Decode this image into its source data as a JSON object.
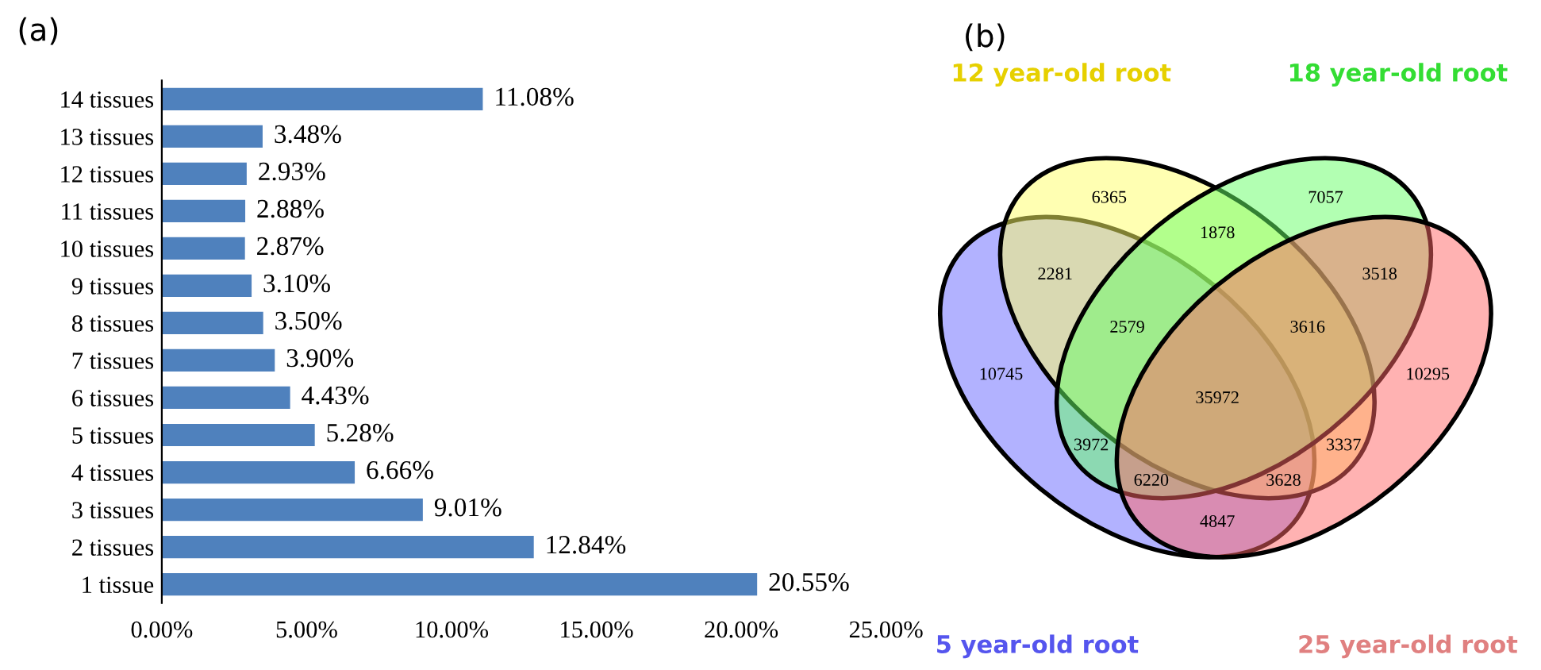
{
  "chart_data": [
    {
      "type": "bar",
      "orientation": "horizontal",
      "title": "(a)",
      "categories": [
        "14 tissues",
        "13 tissues",
        "12 tissues",
        "11 tissues",
        "10 tissues",
        "9 tissues",
        "8 tissues",
        "7 tissues",
        "6 tissues",
        "5 tissues",
        "4 tissues",
        "3 tissues",
        "2 tissues",
        "1 tissue"
      ],
      "values": [
        11.08,
        3.48,
        2.93,
        2.88,
        2.87,
        3.1,
        3.5,
        3.9,
        4.43,
        5.28,
        6.66,
        9.01,
        12.84,
        20.55
      ],
      "value_labels": [
        "11.08%",
        "3.48%",
        "2.93%",
        "2.88%",
        "2.87%",
        "3.10%",
        "3.50%",
        "3.90%",
        "4.43%",
        "5.28%",
        "6.66%",
        "9.01%",
        "12.84%",
        "20.55%"
      ],
      "color": "#4f81bd",
      "xlim": [
        0,
        25
      ],
      "xticks": [
        {
          "value": 0,
          "label": "0.00%"
        },
        {
          "value": 5,
          "label": "5.00%"
        },
        {
          "value": 10,
          "label": "10.00%"
        },
        {
          "value": 15,
          "label": "15.00%"
        },
        {
          "value": 20,
          "label": "20.00%"
        },
        {
          "value": 25,
          "label": "25.00%"
        }
      ],
      "grid": false,
      "legend": false
    },
    {
      "type": "other",
      "title": "(b)",
      "annotations": [
        "5 year-old root",
        "12 year-old root",
        "18 year-old root",
        "25 year-old root",
        "10745",
        "6365",
        "7057",
        "10295",
        "2281",
        "1878",
        "3518",
        "4847",
        "3972",
        "3337",
        "2579",
        "3616",
        "3628",
        "6220",
        "35972"
      ]
    }
  ]
}
